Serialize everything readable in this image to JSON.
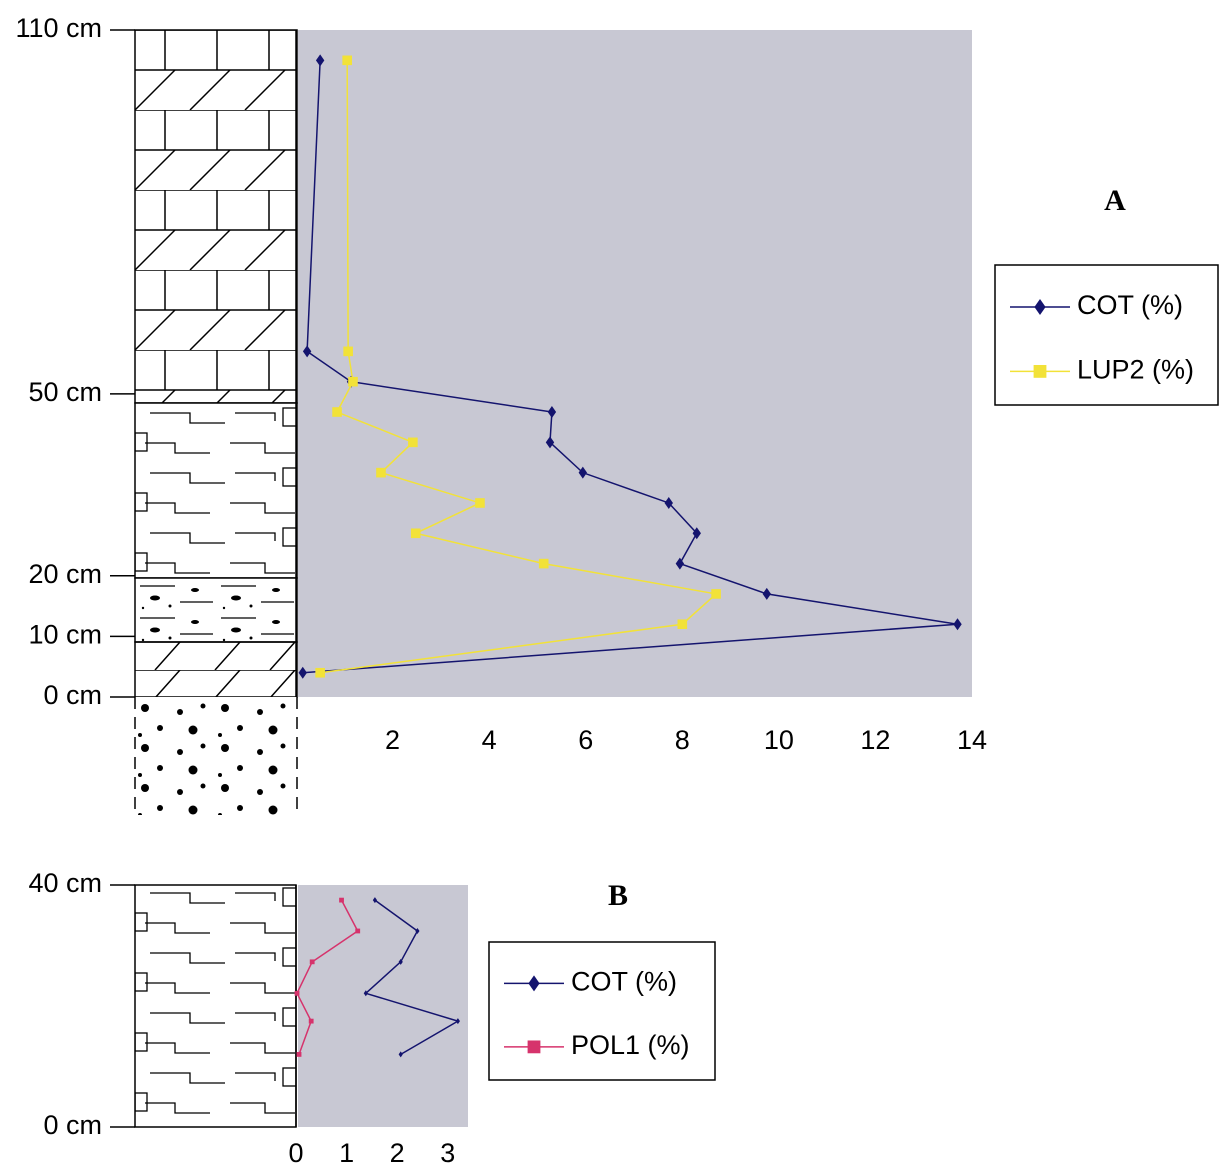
{
  "chart_data": [
    {
      "type": "line",
      "label": "A",
      "depth": [
        105,
        57,
        52,
        47,
        42,
        37,
        32,
        27,
        22,
        17,
        12,
        4
      ],
      "series": [
        {
          "name": "COT (%)",
          "color": "#14146e",
          "marker": "diamond",
          "values": [
            0.5,
            0.23,
            1.14,
            5.3,
            5.26,
            5.94,
            7.72,
            8.3,
            7.95,
            9.75,
            13.7,
            0.14
          ]
        },
        {
          "name": "LUP2 (%)",
          "color": "#f2e238",
          "marker": "square",
          "values": [
            1.06,
            1.08,
            1.18,
            0.85,
            2.42,
            1.76,
            3.81,
            2.48,
            5.13,
            8.7,
            8.0,
            0.5
          ]
        }
      ],
      "xlim": [
        0,
        14
      ],
      "xticks": [
        2,
        4,
        6,
        8,
        10,
        12,
        14
      ],
      "ylim": [
        0,
        110
      ],
      "yticks": [
        {
          "value": 0,
          "label": "0 cm"
        },
        {
          "value": 10,
          "label": "10 cm"
        },
        {
          "value": 20,
          "label": "20 cm"
        },
        {
          "value": 50,
          "label": "50 cm"
        },
        {
          "value": 110,
          "label": "110 cm"
        }
      ]
    },
    {
      "type": "line",
      "label": "B",
      "depth": [
        37.5,
        32.4,
        27.3,
        22.1,
        17.5,
        12
      ],
      "series": [
        {
          "name": "COT (%)",
          "color": "#14146e",
          "marker": "diamond",
          "values": [
            1.56,
            2.4,
            2.07,
            1.38,
            3.2,
            2.07
          ]
        },
        {
          "name": "POL1 (%)",
          "color": "#d6336c",
          "marker": "square",
          "values": [
            0.9,
            1.22,
            0.32,
            0.02,
            0.3,
            0.06
          ]
        }
      ],
      "xlim": [
        0,
        3.4
      ],
      "xticks": [
        0,
        1,
        2,
        3
      ],
      "ylim": [
        0,
        40
      ],
      "yticks": [
        {
          "value": 0,
          "label": "0 cm"
        },
        {
          "value": 40,
          "label": "40 cm"
        }
      ]
    }
  ]
}
